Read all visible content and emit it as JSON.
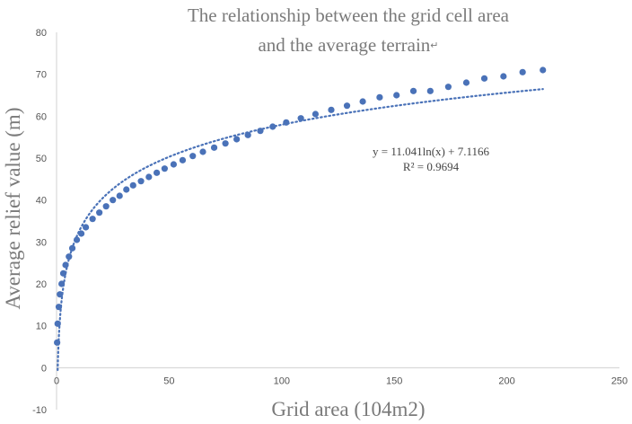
{
  "chart_data": {
    "type": "scatter",
    "title_lines": [
      "The relationship between the grid cell area",
      "and the average terrain"
    ],
    "title_mark": "↵",
    "xlabel": "Grid area (104m2)",
    "ylabel": "Average relief value (m)",
    "xlim": [
      0,
      250
    ],
    "ylim": [
      -10,
      80
    ],
    "xticks": [
      0,
      50,
      100,
      150,
      200,
      250
    ],
    "yticks": [
      -10,
      0,
      10,
      20,
      30,
      40,
      50,
      60,
      70,
      80
    ],
    "grid": false,
    "legend": "none",
    "series": [
      {
        "type": "scatter",
        "color": "#4a72b8",
        "x": [
          0.25,
          0.5,
          1,
          1.5,
          2.25,
          3,
          4,
          5.5,
          7,
          9,
          11,
          13,
          16,
          19,
          22,
          25,
          28,
          31,
          34,
          37.5,
          41,
          44.5,
          48,
          52,
          56,
          60.5,
          65,
          70,
          75,
          80,
          85,
          90.5,
          96,
          102,
          108.5,
          115,
          122,
          129,
          136,
          143.5,
          151,
          158.5,
          166,
          174,
          182,
          190,
          198.5,
          207,
          216
        ],
        "y": [
          6,
          10.5,
          14.5,
          17.5,
          20,
          22.5,
          24.5,
          26.5,
          28.5,
          30.5,
          32,
          33.5,
          35.5,
          37,
          38.5,
          40,
          41,
          42.5,
          43.5,
          44.5,
          45.5,
          46.5,
          47.5,
          48.5,
          49.5,
          50.5,
          51.5,
          52.5,
          53.5,
          54.5,
          55.5,
          56.5,
          57.5,
          58.5,
          59.5,
          60.5,
          61.5,
          62.5,
          63.5,
          64.5,
          65,
          66,
          66,
          67,
          68,
          69,
          69.5,
          70.5,
          71
        ]
      },
      {
        "type": "trendline",
        "style": "dotted",
        "color": "#4a72b8",
        "formula": "logarithmic",
        "a": 11.041,
        "b": 7.1166,
        "x_range": [
          0.5,
          216
        ]
      }
    ],
    "annotations": {
      "equation": "y = 11.041ln(x) + 7.1166",
      "r_squared": "R² = 0.9694"
    }
  }
}
